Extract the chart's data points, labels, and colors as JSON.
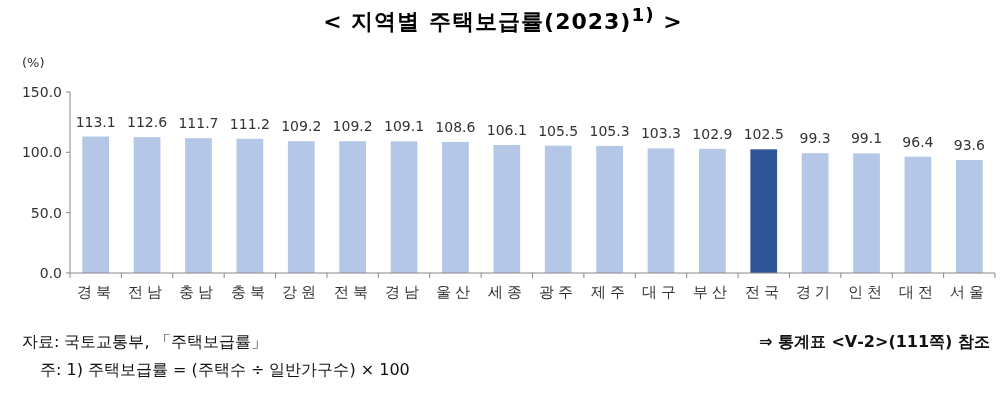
{
  "chart_data": {
    "type": "bar",
    "title": "< 지역별 주택보급률(2023)$^{1)}$ >",
    "ylabel": "(%)",
    "categories": [
      "경북",
      "전남",
      "충남",
      "충북",
      "강원",
      "전북",
      "경남",
      "울산",
      "세종",
      "광주",
      "제주",
      "대구",
      "부산",
      "전국",
      "경기",
      "인천",
      "대전",
      "서울"
    ],
    "values": [
      113.1,
      112.6,
      111.7,
      111.2,
      109.2,
      109.2,
      109.1,
      108.6,
      106.1,
      105.5,
      105.3,
      103.3,
      102.9,
      102.5,
      99.3,
      99.1,
      96.4,
      93.6
    ],
    "colors": [
      "#b4c7e7",
      "#b4c7e7",
      "#b4c7e7",
      "#b4c7e7",
      "#b4c7e7",
      "#b4c7e7",
      "#b4c7e7",
      "#b4c7e7",
      "#b4c7e7",
      "#b4c7e7",
      "#b4c7e7",
      "#b4c7e7",
      "#b4c7e7",
      "#2f5597",
      "#b4c7e7",
      "#b4c7e7",
      "#b4c7e7",
      "#b4c7e7"
    ],
    "ylim": [
      0,
      150
    ],
    "yticks": [
      {
        "value": 0,
        "label": "0.0"
      },
      {
        "value": 50,
        "label": "50.0"
      },
      {
        "value": 100,
        "label": "100.0"
      },
      {
        "value": 150,
        "label": "150.0"
      }
    ],
    "data_labels": true,
    "grid": false,
    "annotations": [
      "자료: 국토교통부, 「주택보급률」",
      "⇒ 통계표 <Ⅴ-2>(111쪽) 참조",
      "주: 1) 주택보급률 = (주택수 ÷ 일반가구수) × 100"
    ]
  }
}
